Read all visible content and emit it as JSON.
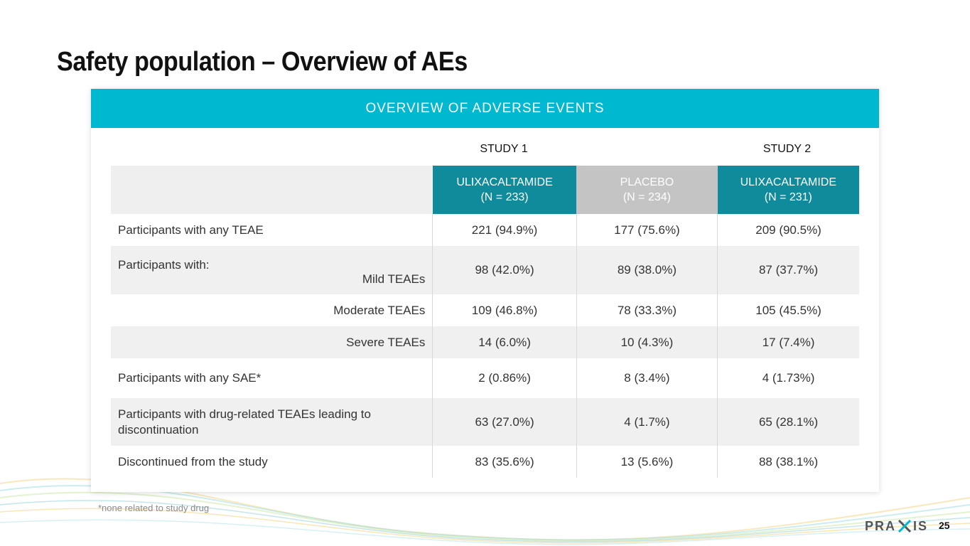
{
  "slide": {
    "title": "Safety population – Overview of AEs",
    "footnote": "*none related to study drug",
    "page_number": "25",
    "logo_text_left": "PRA",
    "logo_text_right": "IS"
  },
  "card": {
    "header": "OVERVIEW OF ADVERSE EVENTS",
    "study1_label": "STUDY 1",
    "study2_label": "STUDY 2"
  },
  "columns": [
    {
      "name": "ULIXACALTAMIDE",
      "n": "(N = 233)"
    },
    {
      "name": "PLACEBO",
      "n": "(N = 234)"
    },
    {
      "name": "ULIXACALTAMIDE",
      "n": "(N = 231)"
    }
  ],
  "rows": [
    {
      "label": "Participants with any TEAE",
      "values": [
        "221 (94.9%)",
        "177 (75.6%)",
        "209 (90.5%)"
      ]
    },
    {
      "label": "Participants with:",
      "sublabel": "Mild TEAEs",
      "values": [
        "98 (42.0%)",
        "89 (38.0%)",
        "87 (37.7%)"
      ]
    },
    {
      "label": "Moderate TEAEs",
      "values": [
        "109 (46.8%)",
        "78 (33.3%)",
        "105 (45.5%)"
      ]
    },
    {
      "label": "Severe TEAEs",
      "values": [
        "14 (6.0%)",
        "10 (4.3%)",
        "17 (7.4%)"
      ]
    },
    {
      "label": "Participants with any SAE*",
      "values": [
        "2 (0.86%)",
        "8 (3.4%)",
        "4 (1.73%)"
      ]
    },
    {
      "label": "Participants with drug-related TEAEs leading to discontinuation",
      "values": [
        "63 (27.0%)",
        "4 (1.7%)",
        "65 (28.1%)"
      ]
    },
    {
      "label": "Discontinued from the study",
      "values": [
        "83 (35.6%)",
        "13 (5.6%)",
        "88 (38.1%)"
      ]
    }
  ],
  "colors": {
    "header_bar": "#00b8d0",
    "ulixacaltamide_header": "#0f8b9b",
    "placebo_header": "#c4c4c4",
    "row_shade": "#f0f0f0"
  }
}
